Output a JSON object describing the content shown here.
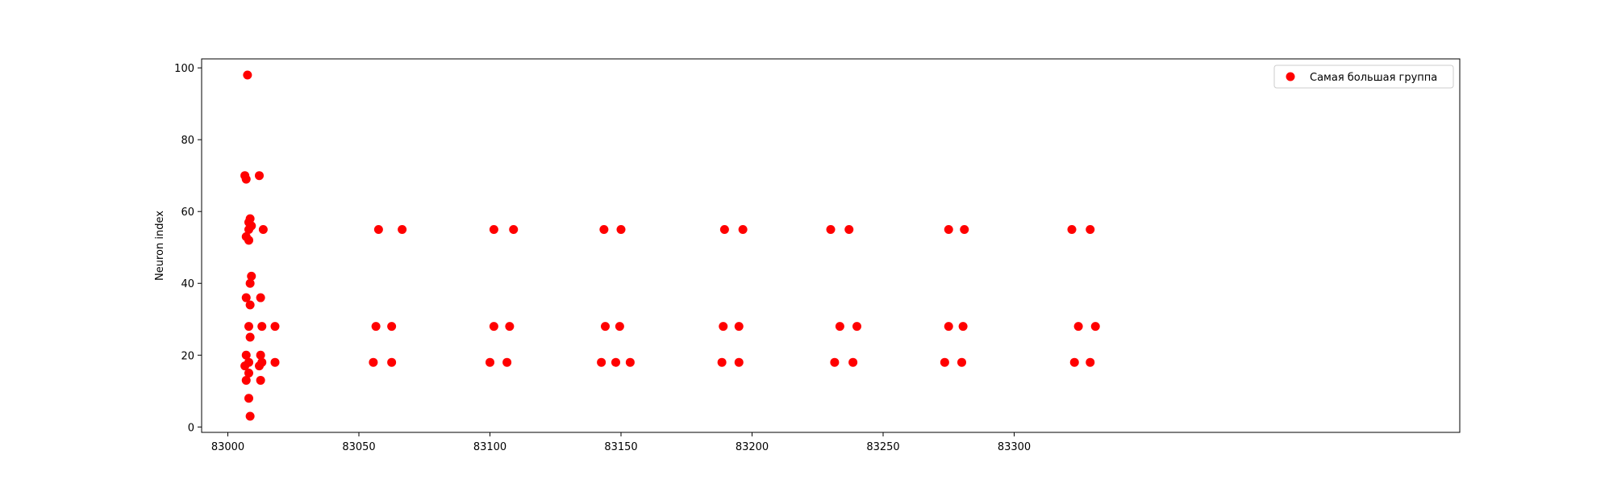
{
  "chart_data": {
    "type": "scatter",
    "title": "",
    "xlabel": "",
    "ylabel": "Neuron index",
    "xlim": [
      82990,
      83470
    ],
    "ylim": [
      -1.5,
      102.5
    ],
    "xticks": [
      83000,
      83050,
      83100,
      83150,
      83200,
      83250,
      83300
    ],
    "yticks": [
      0,
      20,
      40,
      60,
      80,
      100
    ],
    "grid": false,
    "legend_position": "top-right",
    "series": [
      {
        "name": "Самая большая группа",
        "color": "#ff0000",
        "points": [
          [
            83007.5,
            98
          ],
          [
            83006.5,
            70
          ],
          [
            83007.0,
            69
          ],
          [
            83012.0,
            70
          ],
          [
            83008.5,
            58
          ],
          [
            83008.0,
            57
          ],
          [
            83009.0,
            56
          ],
          [
            83008.0,
            55
          ],
          [
            83013.5,
            55
          ],
          [
            83007.0,
            53
          ],
          [
            83008.0,
            52
          ],
          [
            83009.0,
            42
          ],
          [
            83008.5,
            40
          ],
          [
            83007.0,
            36
          ],
          [
            83012.5,
            36
          ],
          [
            83008.5,
            34
          ],
          [
            83008.0,
            28
          ],
          [
            83013.0,
            28
          ],
          [
            83018.0,
            28
          ],
          [
            83008.5,
            25
          ],
          [
            83007.0,
            20
          ],
          [
            83012.5,
            20
          ],
          [
            83008.0,
            18
          ],
          [
            83006.5,
            17
          ],
          [
            83012.0,
            17
          ],
          [
            83013.0,
            18
          ],
          [
            83018.0,
            18
          ],
          [
            83008.0,
            15
          ],
          [
            83007.0,
            13
          ],
          [
            83012.5,
            13
          ],
          [
            83008.0,
            8
          ],
          [
            83008.5,
            3
          ],
          [
            83057.5,
            55
          ],
          [
            83066.5,
            55
          ],
          [
            83056.5,
            28
          ],
          [
            83062.5,
            28
          ],
          [
            83055.5,
            18
          ],
          [
            83062.5,
            18
          ],
          [
            83101.5,
            55
          ],
          [
            83109.0,
            55
          ],
          [
            83101.5,
            28
          ],
          [
            83107.5,
            28
          ],
          [
            83100.0,
            18
          ],
          [
            83106.5,
            18
          ],
          [
            83143.5,
            55
          ],
          [
            83150.0,
            55
          ],
          [
            83144.0,
            28
          ],
          [
            83149.5,
            28
          ],
          [
            83142.5,
            18
          ],
          [
            83148.0,
            18
          ],
          [
            83153.5,
            18
          ],
          [
            83189.5,
            55
          ],
          [
            83196.5,
            55
          ],
          [
            83189.0,
            28
          ],
          [
            83195.0,
            28
          ],
          [
            83188.5,
            18
          ],
          [
            83195.0,
            18
          ],
          [
            83230.0,
            55
          ],
          [
            83237.0,
            55
          ],
          [
            83233.5,
            28
          ],
          [
            83240.0,
            28
          ],
          [
            83231.5,
            18
          ],
          [
            83238.5,
            18
          ],
          [
            83275.0,
            55
          ],
          [
            83281.0,
            55
          ],
          [
            83275.0,
            28
          ],
          [
            83280.5,
            28
          ],
          [
            83273.5,
            18
          ],
          [
            83280.0,
            18
          ],
          [
            83322.0,
            55
          ],
          [
            83329.0,
            55
          ],
          [
            83324.5,
            28
          ],
          [
            83331.0,
            28
          ],
          [
            83323.0,
            18
          ],
          [
            83329.0,
            18
          ]
        ]
      }
    ]
  }
}
